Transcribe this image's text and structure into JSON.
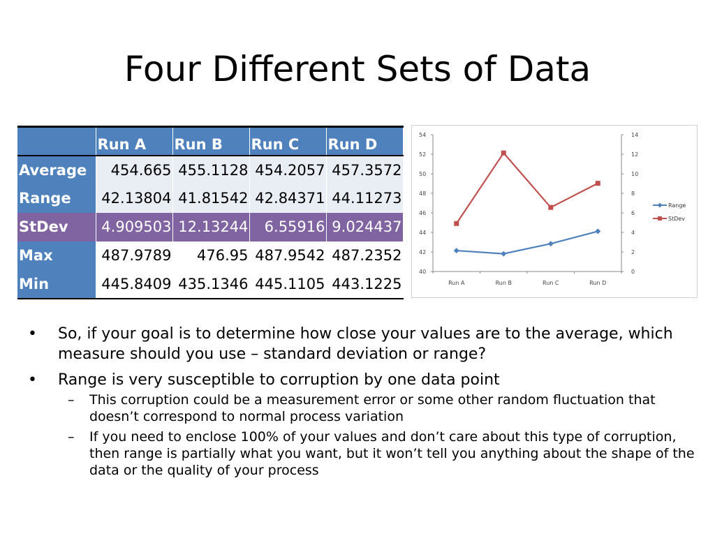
{
  "slide": {
    "title": "Four Different Sets of Data"
  },
  "table": {
    "columns": [
      "",
      "Run A",
      "Run B",
      "Run C",
      "Run D"
    ],
    "rows": [
      {
        "label": "Average",
        "values": [
          "454.665",
          "455.1128",
          "454.2057",
          "457.3572"
        ]
      },
      {
        "label": "Range",
        "values": [
          "42.13804",
          "41.81542",
          "42.84371",
          "44.11273"
        ]
      },
      {
        "label": "StDev",
        "values": [
          "4.909503",
          "12.13244",
          "6.55916",
          "9.024437"
        ]
      },
      {
        "label": "Max",
        "values": [
          "487.9789",
          "476.95",
          "487.9542",
          "487.2352"
        ]
      },
      {
        "label": "Min",
        "values": [
          "445.8409",
          "435.1346",
          "445.1105",
          "443.1225"
        ]
      }
    ]
  },
  "chart_data": {
    "type": "line",
    "categories": [
      "Run A",
      "Run B",
      "Run C",
      "Run D"
    ],
    "series": [
      {
        "name": "Range",
        "axis": "left",
        "color": "#4f81bd",
        "marker": "diamond",
        "values": [
          42.13804,
          41.81542,
          42.84371,
          44.11273
        ]
      },
      {
        "name": "StDev",
        "axis": "right",
        "color": "#c0504d",
        "marker": "square",
        "values": [
          4.909503,
          12.13244,
          6.55916,
          9.024437
        ]
      }
    ],
    "y_left": {
      "min": 40,
      "max": 54,
      "ticks": [
        "40",
        "42",
        "44",
        "46",
        "48",
        "50",
        "52",
        "54"
      ]
    },
    "y_right": {
      "min": 0,
      "max": 14,
      "ticks": [
        "0",
        "2",
        "4",
        "6",
        "8",
        "10",
        "12",
        "14"
      ]
    },
    "grid": false,
    "legend_position": "right"
  },
  "bullets": [
    {
      "text": "So, if your goal is to determine how close your values are to the average, which measure should you use – standard deviation or range?",
      "sub": []
    },
    {
      "text": "Range is very susceptible to corruption by one data point",
      "sub": [
        "This corruption could be a measurement error or some other random fluctuation that doesn’t correspond to normal process variation",
        "If you need to enclose 100% of your values and don’t care about this type of corruption, then range is partially what you want, but it won’t tell you anything about the shape of the data or the quality of your process"
      ]
    }
  ]
}
